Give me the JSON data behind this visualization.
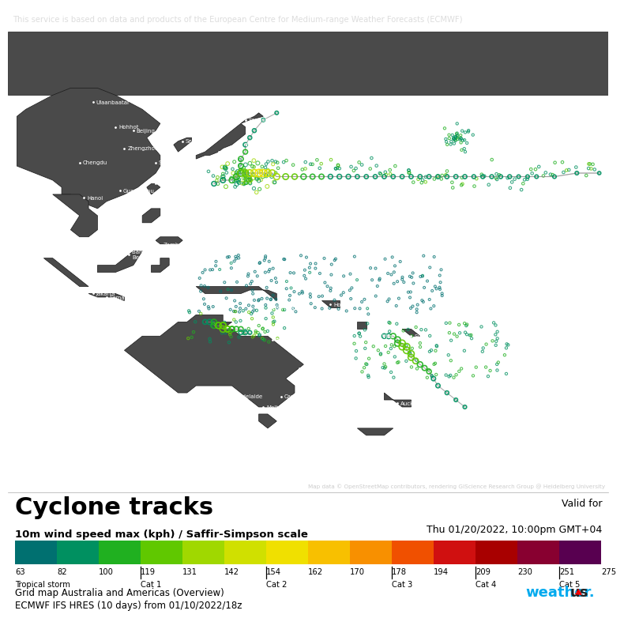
{
  "header_text": "This service is based on data and products of the European Centre for Medium-range Weather Forecasts (ECMWF)",
  "header_bg": "#3c3c3c",
  "header_text_color": "#dddddd",
  "map_bg": "#686868",
  "land_color": "#3a3a3a",
  "map_attribution": "Map data © OpenStreetMap contributors, rendering GIScience Research Group @ Heidelberg University",
  "panel_bg": "#ffffff",
  "title": "Cyclone tracks",
  "subtitle": "10m wind speed max (kph) / Saffir-Simpson scale",
  "valid_for_line1": "Valid for",
  "valid_for_line2": "Thu 01/20/2022, 10:00pm GMT+04",
  "legend_colors": [
    "#007070",
    "#009060",
    "#20b020",
    "#60c800",
    "#a0d800",
    "#d0e000",
    "#f0e000",
    "#f8c000",
    "#f89000",
    "#f05000",
    "#d01010",
    "#a80000",
    "#880030",
    "#580050"
  ],
  "legend_values": [
    "63",
    "82",
    "100",
    "119",
    "131",
    "142",
    "154",
    "162",
    "170",
    "178",
    "194",
    "209",
    "230",
    "251",
    "275"
  ],
  "bottom_line1": "Grid map Australia and Americas (Overview)",
  "bottom_line2": "ECMWF IFS HRES (10 days) from 01/10/2022/18z"
}
